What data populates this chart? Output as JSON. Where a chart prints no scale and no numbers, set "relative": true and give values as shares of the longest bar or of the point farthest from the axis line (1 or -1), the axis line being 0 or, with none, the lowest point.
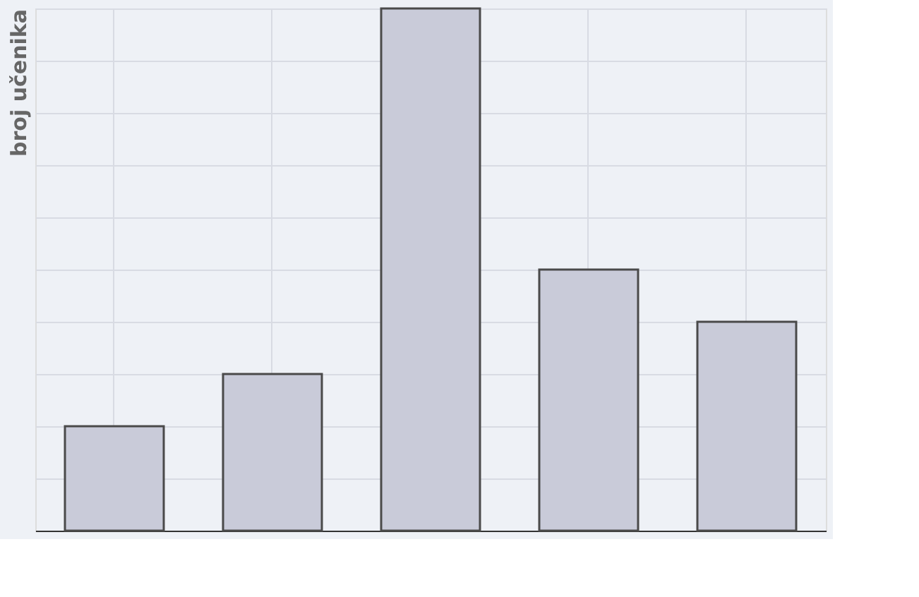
{
  "chart_data": {
    "type": "bar",
    "ylabel": "broj učenika",
    "relative": true,
    "categories": [
      null,
      null,
      null,
      null,
      null
    ],
    "values": [
      0.2,
      0.3,
      1,
      0.5,
      0.4
    ],
    "color": "#c9cbd9",
    "grid": true
  }
}
